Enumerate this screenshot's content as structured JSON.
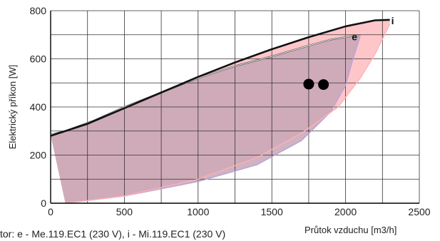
{
  "chart_data": {
    "type": "area",
    "title": "",
    "xlabel": "Průtok vzduchu [m3/h]",
    "ylabel": "Elektrický příkon [W]",
    "xlim": [
      0,
      2500
    ],
    "ylim": [
      0,
      800
    ],
    "x_ticks": [
      "0",
      "500",
      "1000",
      "1500",
      "2000",
      "2500"
    ],
    "y_ticks": [
      "0",
      "200",
      "400",
      "600",
      "800"
    ],
    "grid": true,
    "caption": "tor: e - Me.119.EC1 (230 V), i - Mi.119.EC1 (230 V)",
    "colors": {
      "envelope_e": "#c7a6b6",
      "envelope_i": "#ffc0c4",
      "curve_e": "#555555",
      "curve_i": "#111111",
      "points": "#000000"
    },
    "series": [
      {
        "name": "e",
        "max_curve": [
          [
            0,
            285
          ],
          [
            100,
            300
          ],
          [
            300,
            345
          ],
          [
            500,
            400
          ],
          [
            750,
            460
          ],
          [
            1000,
            520
          ],
          [
            1250,
            570
          ],
          [
            1500,
            610
          ],
          [
            1750,
            655
          ],
          [
            1900,
            680
          ],
          [
            2050,
            695
          ],
          [
            2100,
            695
          ]
        ],
        "min_curve": [
          [
            100,
            0
          ],
          [
            500,
            30
          ],
          [
            1000,
            90
          ],
          [
            1400,
            160
          ],
          [
            1700,
            260
          ],
          [
            1900,
            380
          ],
          [
            2000,
            490
          ],
          [
            2050,
            600
          ],
          [
            2100,
            695
          ]
        ]
      },
      {
        "name": "i",
        "max_curve": [
          [
            0,
            280
          ],
          [
            250,
            330
          ],
          [
            500,
            395
          ],
          [
            750,
            460
          ],
          [
            1000,
            525
          ],
          [
            1250,
            585
          ],
          [
            1500,
            640
          ],
          [
            1750,
            690
          ],
          [
            2000,
            735
          ],
          [
            2200,
            760
          ],
          [
            2300,
            762
          ]
        ],
        "min_curve": [
          [
            100,
            0
          ],
          [
            500,
            30
          ],
          [
            1000,
            100
          ],
          [
            1400,
            190
          ],
          [
            1700,
            290
          ],
          [
            1950,
            400
          ],
          [
            2100,
            520
          ],
          [
            2200,
            620
          ],
          [
            2300,
            745
          ]
        ]
      }
    ],
    "points": [
      {
        "x": 1750,
        "y": 495
      },
      {
        "x": 1850,
        "y": 493
      }
    ]
  }
}
